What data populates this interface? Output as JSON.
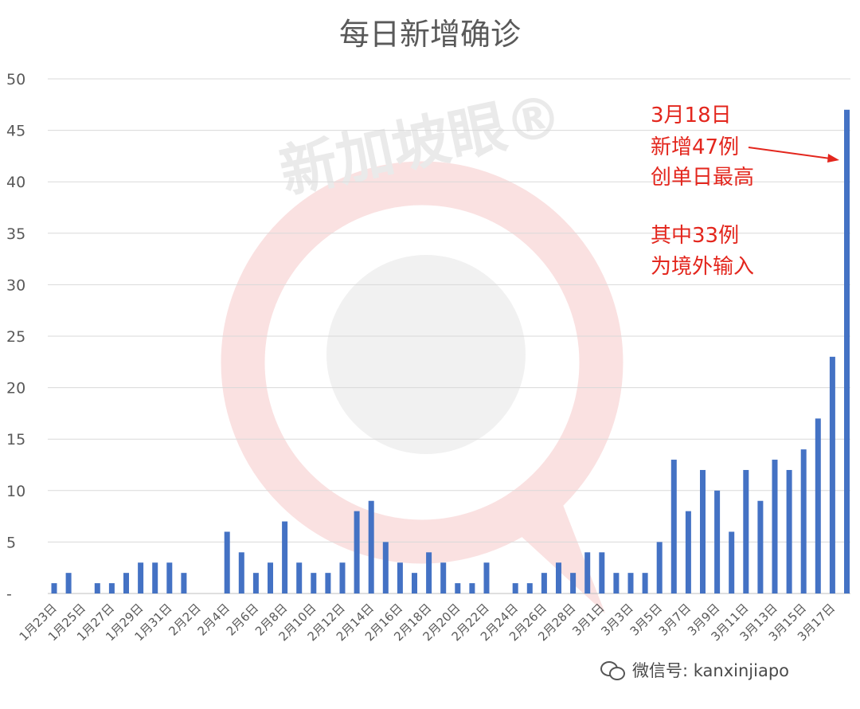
{
  "chart_data": {
    "type": "bar",
    "title": "每日新增确诊",
    "ylim": [
      0,
      50
    ],
    "yticks": [
      "-",
      "5",
      "10",
      "15",
      "20",
      "25",
      "30",
      "35",
      "40",
      "45",
      "50"
    ],
    "grid": true,
    "legend": "none",
    "bar_color": "#4472c4",
    "categories": [
      "1月23日",
      "1月24日",
      "1月25日",
      "1月26日",
      "1月27日",
      "1月28日",
      "1月29日",
      "1月30日",
      "1月31日",
      "2月1日",
      "2月2日",
      "2月3日",
      "2月4日",
      "2月5日",
      "2月6日",
      "2月7日",
      "2月8日",
      "2月9日",
      "2月10日",
      "2月11日",
      "2月12日",
      "2月13日",
      "2月14日",
      "2月15日",
      "2月16日",
      "2月17日",
      "2月18日",
      "2月19日",
      "2月20日",
      "2月21日",
      "2月22日",
      "2月23日",
      "2月24日",
      "2月25日",
      "2月26日",
      "2月27日",
      "2月28日",
      "2月29日",
      "3月1日",
      "3月2日",
      "3月3日",
      "3月4日",
      "3月5日",
      "3月6日",
      "3月7日",
      "3月8日",
      "3月9日",
      "3月10日",
      "3月11日",
      "3月12日",
      "3月13日",
      "3月14日",
      "3月15日",
      "3月16日",
      "3月17日",
      "3月18日"
    ],
    "shown_labels": [
      "1月23日",
      "1月25日",
      "1月27日",
      "1月29日",
      "1月31日",
      "2月2日",
      "2月4日",
      "2月6日",
      "2月8日",
      "2月10日",
      "2月12日",
      "2月14日",
      "2月16日",
      "2月18日",
      "2月20日",
      "2月22日",
      "2月24日",
      "2月26日",
      "2月28日",
      "3月1日",
      "3月3日",
      "3月5日",
      "3月7日",
      "3月9日",
      "3月11日",
      "3月13日",
      "3月15日",
      "3月17日"
    ],
    "values": [
      1,
      2,
      0,
      1,
      1,
      2,
      3,
      3,
      3,
      2,
      0,
      0,
      6,
      4,
      2,
      3,
      7,
      3,
      2,
      2,
      3,
      8,
      9,
      5,
      3,
      2,
      4,
      3,
      1,
      1,
      3,
      0,
      1,
      1,
      2,
      3,
      2,
      4,
      4,
      2,
      2,
      2,
      5,
      13,
      8,
      12,
      10,
      6,
      12,
      9,
      13,
      12,
      14,
      17,
      23,
      47
    ],
    "annotation": {
      "lines": [
        "3月18日",
        "新增47例",
        "创单日最高",
        "",
        "其中33例",
        "为境外输入"
      ],
      "color": "#e3261d"
    }
  },
  "watermark": {
    "text": "新加坡眼®"
  },
  "footer": {
    "text": "微信号: kanxinjiapo"
  }
}
